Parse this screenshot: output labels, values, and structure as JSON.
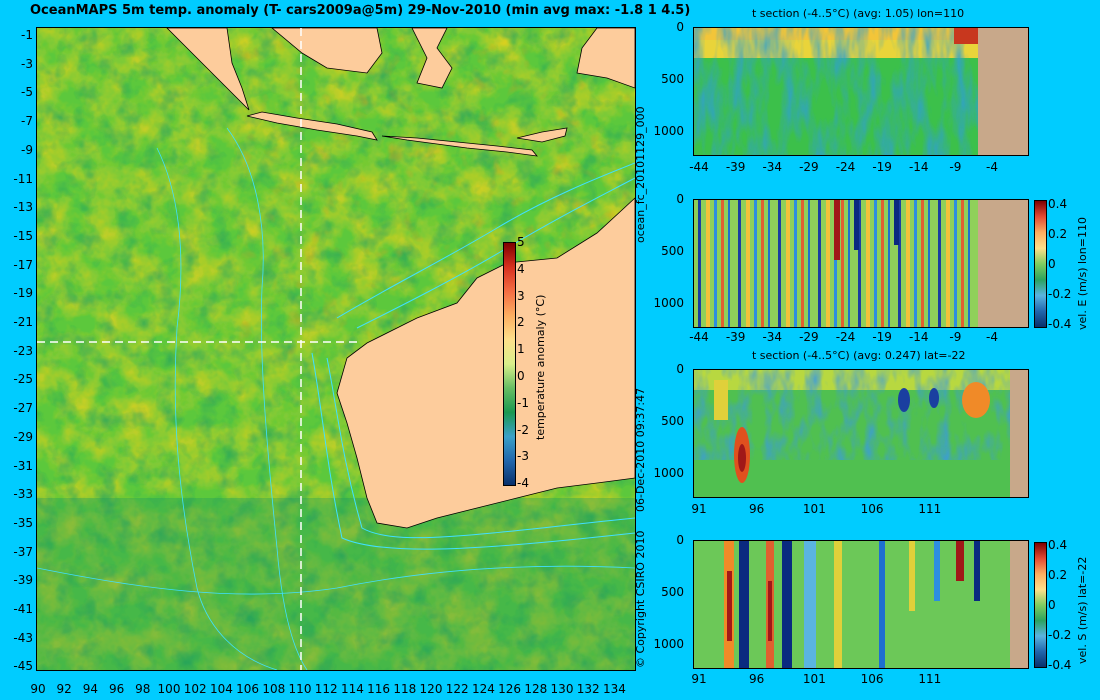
{
  "map": {
    "title": "OceanMAPS 5m temp. anomaly (T- cars2009a@5m) 29-Nov-2010 (min avg max: -1.8 1 4.5)",
    "lat_labels": [
      "-1",
      "-3",
      "-5",
      "-7",
      "-9",
      "-11",
      "-13",
      "-15",
      "-17",
      "-19",
      "-21",
      "-23",
      "-25",
      "-27",
      "-29",
      "-31",
      "-33",
      "-35",
      "-37",
      "-39",
      "-41",
      "-43",
      "-45"
    ],
    "lon_labels": [
      "90",
      "92",
      "94",
      "96",
      "98",
      "100",
      "102",
      "104",
      "106",
      "108",
      "110",
      "112",
      "114",
      "116",
      "118",
      "120",
      "122",
      "124",
      "126",
      "128",
      "130",
      "132",
      "134"
    ],
    "colorbar": {
      "label": "temperature anomaly (°C)",
      "ticks": [
        "5",
        "4",
        "3",
        "2",
        "1",
        "0",
        "-1",
        "-2",
        "-3",
        "-4"
      ]
    },
    "colors": {
      "ocean": "#56c93a",
      "land": "#fdcc9c",
      "background": "#00ccff",
      "crosshair": "#ffffff",
      "bathy": "#40e0ff"
    }
  },
  "side_text": {
    "run_id": "ocean_fc_20101129_000",
    "timestamp": "06-Dec-2010 09:37:47",
    "copyright": "© Copyright CSIRO 2010"
  },
  "panels": [
    {
      "title": "t section (-4..5°C) (avg: 1.05) lon=110",
      "y_ticks": [
        "0",
        "500",
        "1000"
      ],
      "x_ticks": [
        "-44",
        "-39",
        "-34",
        "-29",
        "-24",
        "-19",
        "-14",
        "-9",
        "-4"
      ]
    },
    {
      "title": "",
      "y_ticks": [
        "0",
        "500",
        "1000"
      ],
      "x_ticks": [
        "-44",
        "-39",
        "-34",
        "-29",
        "-24",
        "-19",
        "-14",
        "-9",
        "-4"
      ],
      "cbar_label": "vel. E (m/s) lon=110",
      "cbar_ticks": [
        "0.4",
        "0.2",
        "0",
        "-0.2",
        "-0.4"
      ]
    },
    {
      "title": "t section (-4..5°C) (avg: 0.247) lat=-22",
      "y_ticks": [
        "0",
        "500",
        "1000"
      ],
      "x_ticks": [
        "91",
        "96",
        "101",
        "106",
        "111"
      ]
    },
    {
      "title": "",
      "y_ticks": [
        "0",
        "500",
        "1000"
      ],
      "x_ticks": [
        "91",
        "96",
        "101",
        "106",
        "111"
      ],
      "cbar_label": "vel. S (m/s) lat=-22",
      "cbar_ticks": [
        "0.4",
        "0.2",
        "0",
        "-0.2",
        "-0.4"
      ]
    }
  ]
}
